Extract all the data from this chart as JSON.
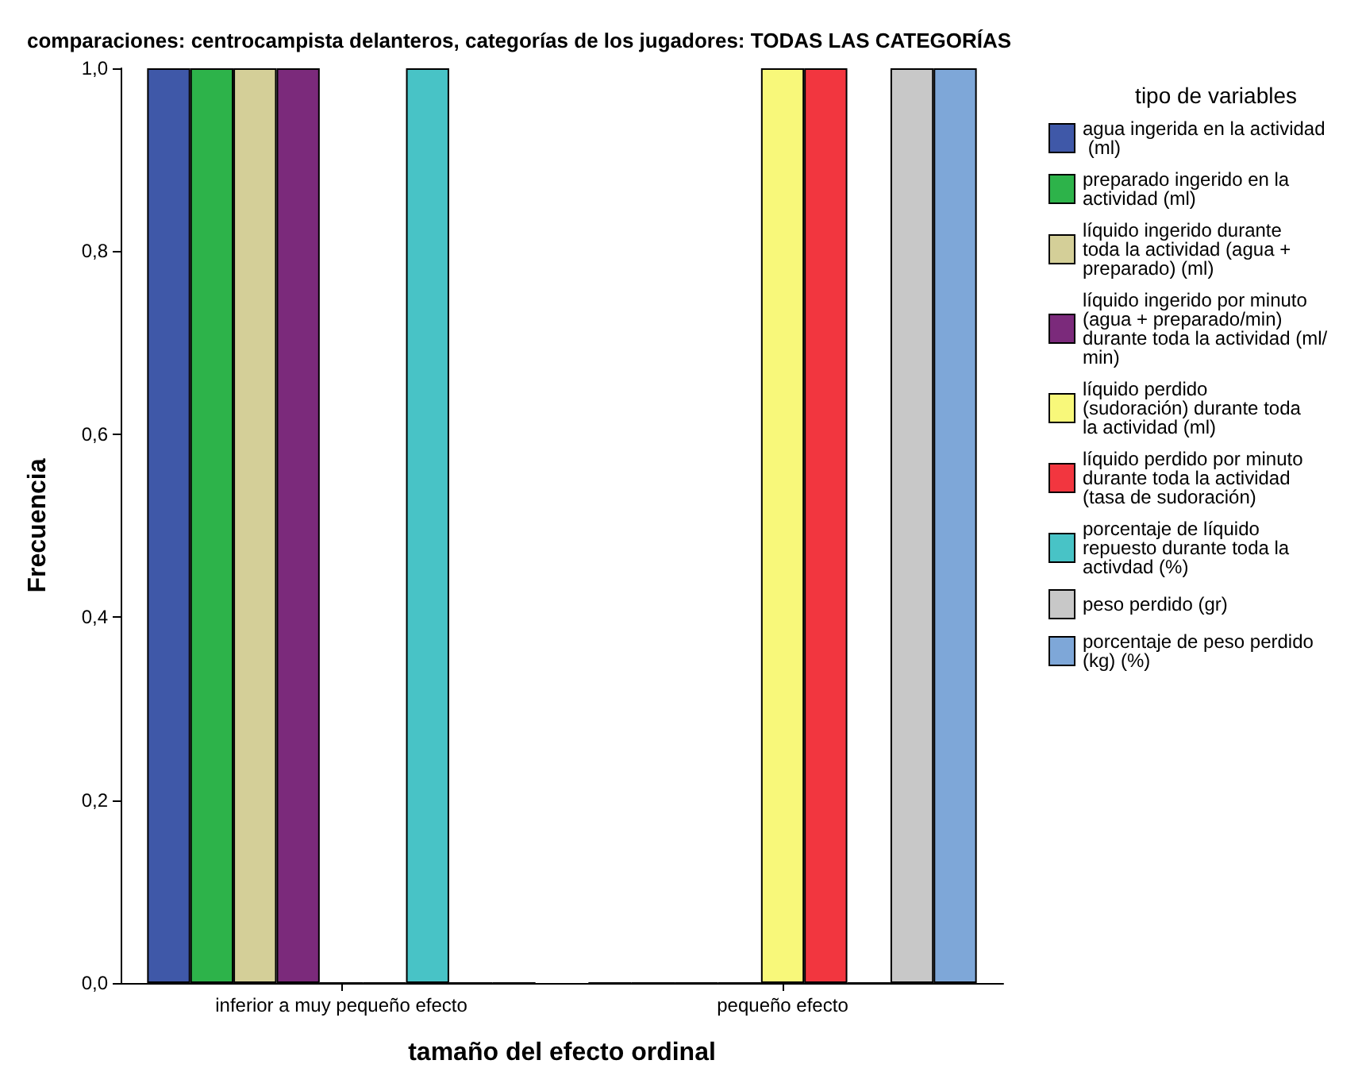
{
  "chart_data": {
    "type": "bar",
    "title": "comparaciones: centrocampista delanteros, categorías de los jugadores: TODAS LAS CATEGORÍAS",
    "xlabel": "tamaño del efecto ordinal",
    "ylabel": "Frecuencia",
    "legend_title": "tipo de variables",
    "legend": "right",
    "categories": [
      "inferior a muy pequeño efecto",
      "pequeño efecto"
    ],
    "ylim": [
      0,
      1
    ],
    "yticks": [
      {
        "value": 0,
        "label": "0,0"
      },
      {
        "value": 0.2,
        "label": "0,2"
      },
      {
        "value": 0.4,
        "label": "0,4"
      },
      {
        "value": 0.6,
        "label": "0,6"
      },
      {
        "value": 0.8,
        "label": "0,8"
      },
      {
        "value": 1,
        "label": "1,0"
      }
    ],
    "series": [
      {
        "name": "agua ingerida en la actividad (ml)",
        "color": "#3f58a8",
        "values": [
          1,
          0
        ]
      },
      {
        "name": "preparado ingerido en la actividad (ml)",
        "color": "#2db34a",
        "values": [
          1,
          0
        ]
      },
      {
        "name": "líquido ingerido durante toda la actividad (agua + preparado) (ml)",
        "color": "#d4cf98",
        "values": [
          1,
          0
        ]
      },
      {
        "name": "líquido ingerido por minuto (agua + preparado/min) durante toda la actividad (ml/min)",
        "color": "#7b2a7b",
        "values": [
          1,
          0
        ]
      },
      {
        "name": "líquido perdido (sudoración) durante toda la actividad (ml)",
        "color": "#f8f87a",
        "values": [
          0,
          1
        ]
      },
      {
        "name": "líquido perdido por minuto durante toda la actividad (tasa de sudoración)",
        "color": "#f2363f",
        "values": [
          0,
          1
        ]
      },
      {
        "name": "porcentaje de líquido repuesto durante toda la activdad (%)",
        "color": "#48c3c6",
        "values": [
          1,
          0
        ]
      },
      {
        "name": "peso perdido (gr)",
        "color": "#c8c8c8",
        "values": [
          0,
          1
        ]
      },
      {
        "name": "porcentaje de peso perdido (kg) (%)",
        "color": "#7ea7d8",
        "values": [
          0,
          1
        ]
      }
    ]
  }
}
